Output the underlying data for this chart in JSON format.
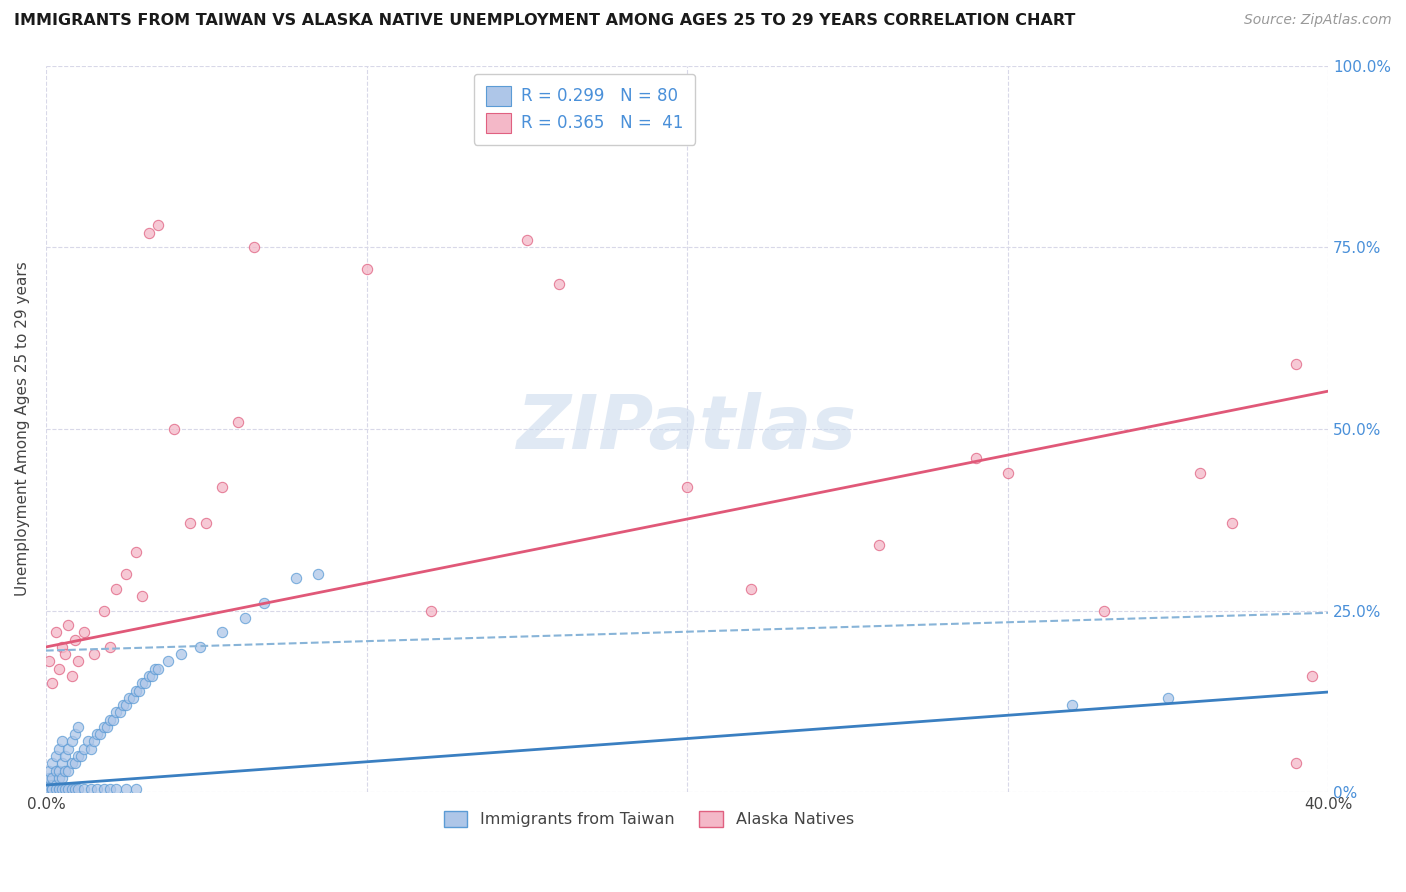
{
  "title": "IMMIGRANTS FROM TAIWAN VS ALASKA NATIVE UNEMPLOYMENT AMONG AGES 25 TO 29 YEARS CORRELATION CHART",
  "source": "Source: ZipAtlas.com",
  "ylabel": "Unemployment Among Ages 25 to 29 years",
  "xlim": [
    0.0,
    0.4
  ],
  "ylim": [
    0.0,
    1.0
  ],
  "xtick_positions": [
    0.0,
    0.1,
    0.2,
    0.3,
    0.4
  ],
  "xtick_labels": [
    "0.0%",
    "",
    "",
    "",
    "40.0%"
  ],
  "right_ytick_positions": [
    0.0,
    0.25,
    0.5,
    0.75,
    1.0
  ],
  "right_ytick_labels": [
    "0%",
    "25.0%",
    "50.0%",
    "75.0%",
    "100.0%"
  ],
  "legend_taiwan": "R = 0.299   N = 80",
  "legend_alaska": "R = 0.365   N =  41",
  "taiwan_fill_color": "#aec6e8",
  "alaska_fill_color": "#f4b8c8",
  "taiwan_edge_color": "#5b9bd5",
  "alaska_edge_color": "#e06080",
  "taiwan_line_color": "#3a7fc1",
  "alaska_line_color": "#e05878",
  "dashed_line_color": "#88b4d8",
  "background_color": "#ffffff",
  "grid_color": "#d8d8e8",
  "taiwan_line_intercept": 0.01,
  "taiwan_line_slope": 0.32,
  "alaska_line_intercept": 0.2,
  "alaska_line_slope": 0.88,
  "dashed_line_intercept": 0.195,
  "dashed_line_slope": 0.13,
  "taiwan_scatter_x": [
    0.001,
    0.001,
    0.001,
    0.002,
    0.002,
    0.002,
    0.003,
    0.003,
    0.003,
    0.004,
    0.004,
    0.004,
    0.005,
    0.005,
    0.005,
    0.006,
    0.006,
    0.007,
    0.007,
    0.008,
    0.008,
    0.009,
    0.009,
    0.01,
    0.01,
    0.011,
    0.012,
    0.013,
    0.014,
    0.015,
    0.016,
    0.017,
    0.018,
    0.019,
    0.02,
    0.021,
    0.022,
    0.023,
    0.024,
    0.025,
    0.026,
    0.027,
    0.028,
    0.029,
    0.03,
    0.031,
    0.032,
    0.033,
    0.034,
    0.035,
    0.001,
    0.001,
    0.002,
    0.002,
    0.003,
    0.004,
    0.005,
    0.006,
    0.007,
    0.008,
    0.009,
    0.01,
    0.012,
    0.014,
    0.016,
    0.018,
    0.02,
    0.022,
    0.025,
    0.028,
    0.038,
    0.042,
    0.048,
    0.055,
    0.062,
    0.068,
    0.078,
    0.085,
    0.32,
    0.35
  ],
  "taiwan_scatter_y": [
    0.01,
    0.02,
    0.03,
    0.01,
    0.02,
    0.04,
    0.01,
    0.03,
    0.05,
    0.02,
    0.03,
    0.06,
    0.02,
    0.04,
    0.07,
    0.03,
    0.05,
    0.03,
    0.06,
    0.04,
    0.07,
    0.04,
    0.08,
    0.05,
    0.09,
    0.05,
    0.06,
    0.07,
    0.06,
    0.07,
    0.08,
    0.08,
    0.09,
    0.09,
    0.1,
    0.1,
    0.11,
    0.11,
    0.12,
    0.12,
    0.13,
    0.13,
    0.14,
    0.14,
    0.15,
    0.15,
    0.16,
    0.16,
    0.17,
    0.17,
    0.005,
    0.005,
    0.005,
    0.005,
    0.005,
    0.005,
    0.005,
    0.005,
    0.005,
    0.005,
    0.005,
    0.005,
    0.005,
    0.005,
    0.005,
    0.005,
    0.005,
    0.005,
    0.005,
    0.005,
    0.18,
    0.19,
    0.2,
    0.22,
    0.24,
    0.26,
    0.295,
    0.3,
    0.12,
    0.13
  ],
  "alaska_scatter_x": [
    0.001,
    0.002,
    0.003,
    0.004,
    0.005,
    0.006,
    0.007,
    0.008,
    0.009,
    0.01,
    0.012,
    0.015,
    0.018,
    0.02,
    0.022,
    0.025,
    0.028,
    0.03,
    0.032,
    0.035,
    0.04,
    0.045,
    0.05,
    0.055,
    0.06,
    0.065,
    0.1,
    0.12,
    0.15,
    0.16,
    0.2,
    0.22,
    0.26,
    0.29,
    0.3,
    0.33,
    0.36,
    0.37,
    0.39,
    0.39,
    0.395
  ],
  "alaska_scatter_y": [
    0.18,
    0.15,
    0.22,
    0.17,
    0.2,
    0.19,
    0.23,
    0.16,
    0.21,
    0.18,
    0.22,
    0.19,
    0.25,
    0.2,
    0.28,
    0.3,
    0.33,
    0.27,
    0.77,
    0.78,
    0.5,
    0.37,
    0.37,
    0.42,
    0.51,
    0.75,
    0.72,
    0.25,
    0.76,
    0.7,
    0.42,
    0.28,
    0.34,
    0.46,
    0.44,
    0.25,
    0.44,
    0.37,
    0.59,
    0.04,
    0.16
  ]
}
